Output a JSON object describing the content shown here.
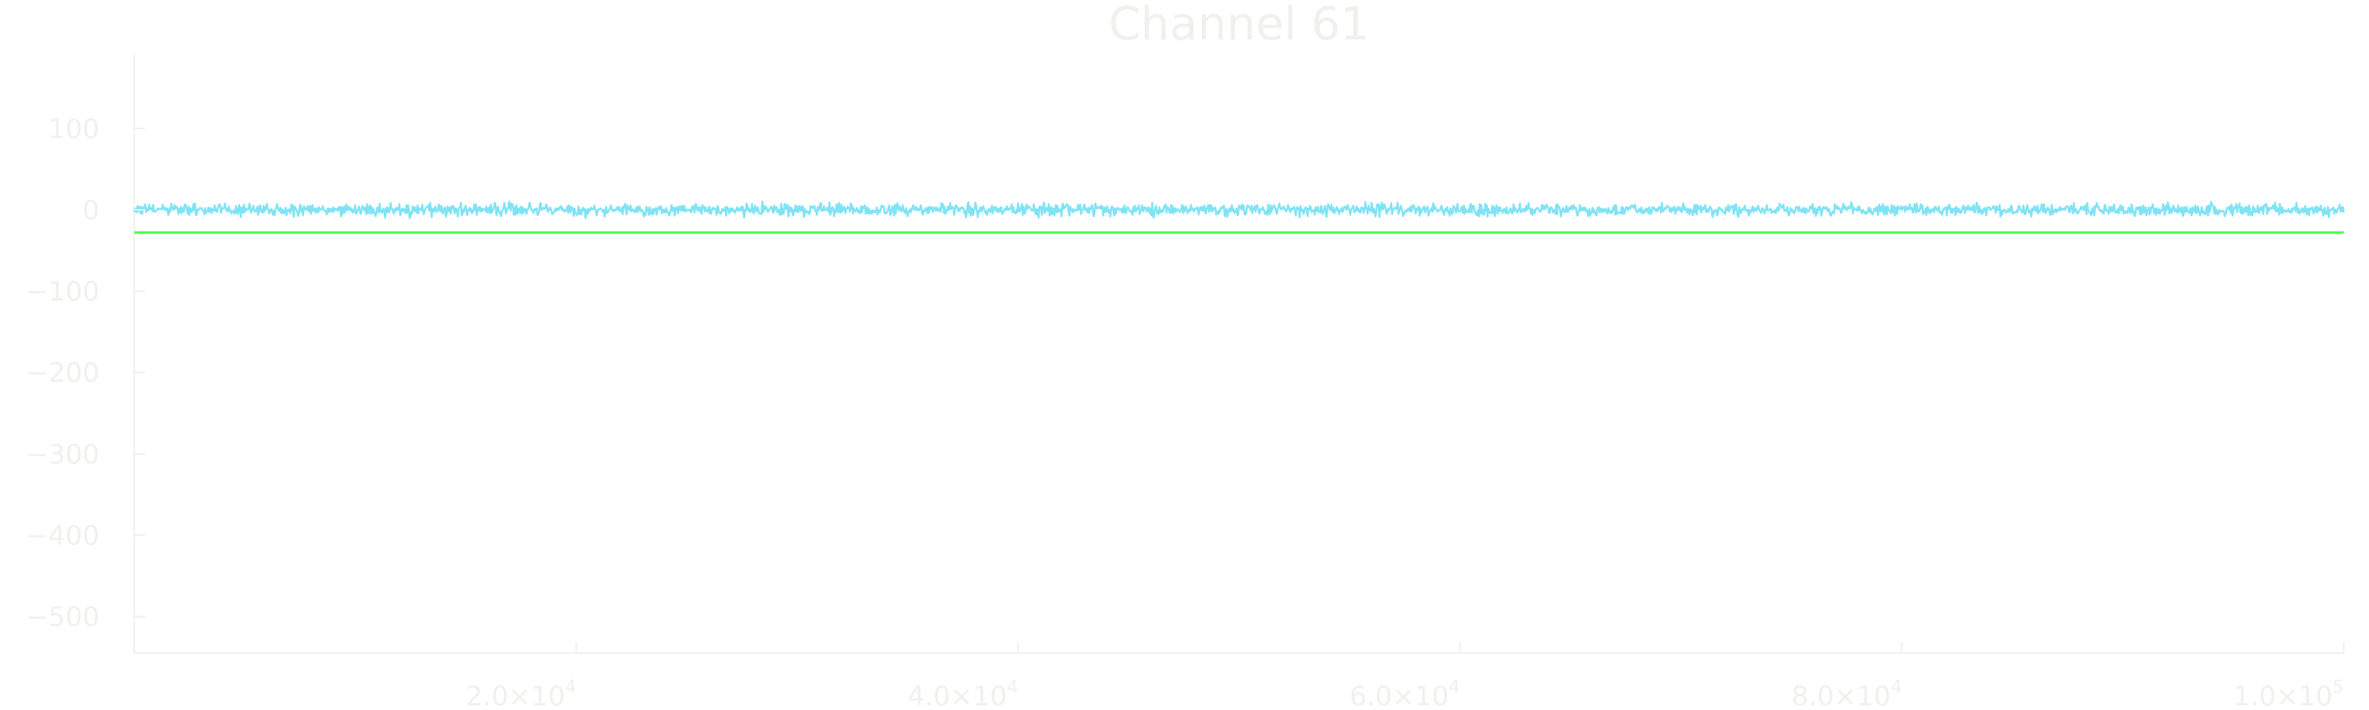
{
  "chart_data": {
    "type": "line",
    "title": "Channel 61",
    "xlabel": "",
    "ylabel": "",
    "xlim": [
      0,
      100000
    ],
    "ylim": [
      -545,
      190
    ],
    "grid": false,
    "legend": "none",
    "x_ticks": [
      {
        "value": 20000,
        "mantissa": "2.0×10",
        "exponent": "4"
      },
      {
        "value": 40000,
        "mantissa": "4.0×10",
        "exponent": "4"
      },
      {
        "value": 60000,
        "mantissa": "6.0×10",
        "exponent": "4"
      },
      {
        "value": 80000,
        "mantissa": "8.0×10",
        "exponent": "4"
      },
      {
        "value": 100000,
        "mantissa": "1.0×10",
        "exponent": "5"
      }
    ],
    "y_ticks": [
      {
        "value": 100,
        "label": "100"
      },
      {
        "value": 0,
        "label": "0"
      },
      {
        "value": -100,
        "label": "−100"
      },
      {
        "value": -200,
        "label": "−200"
      },
      {
        "value": -300,
        "label": "−300"
      },
      {
        "value": -400,
        "label": "−400"
      },
      {
        "value": -500,
        "label": "−500"
      }
    ],
    "series": [
      {
        "kind": "noise",
        "color": "#7fe3f5",
        "x_range": [
          0,
          100000
        ],
        "center": 0,
        "amplitude": 11
      },
      {
        "kind": "constant",
        "color": "#4cff4c",
        "x": [
          0,
          100000
        ],
        "y": [
          -28,
          -28
        ]
      }
    ],
    "colors": {
      "axis": "#f0f0ec",
      "text": "#f0f0ec",
      "background": "#ffffff"
    }
  }
}
